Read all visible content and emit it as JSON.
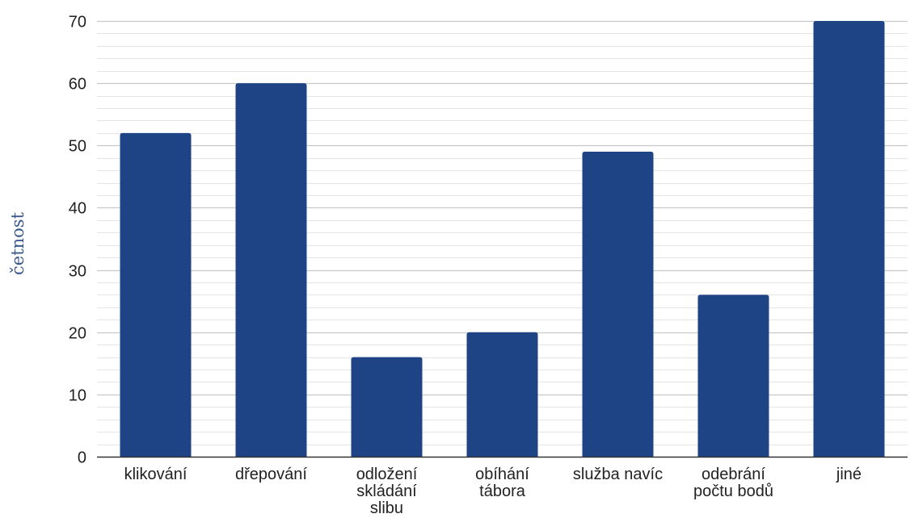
{
  "chart_data": {
    "type": "bar",
    "categories": [
      [
        "klikování"
      ],
      [
        "dřepování"
      ],
      [
        "odložení",
        "skládání",
        "slibu"
      ],
      [
        "obíhání",
        "tábora"
      ],
      [
        "služba navíc"
      ],
      [
        "odebrání",
        "počtu bodů"
      ],
      [
        "jiné"
      ]
    ],
    "values": [
      52,
      60,
      16,
      20,
      49,
      26,
      70
    ],
    "ylabel": "četnost",
    "xlabel": "",
    "ylim": [
      0,
      70
    ],
    "yticks": [
      0,
      10,
      20,
      30,
      40,
      50,
      60,
      70
    ],
    "minor_grid_step": 2,
    "grid": true,
    "legend": "none",
    "colors": {
      "bar": "#1f4485",
      "major_grid": "#c8c8c8",
      "minor_grid": "#e4e4e4",
      "axis": "#333333",
      "ylabel": "#3a5a8c"
    }
  }
}
